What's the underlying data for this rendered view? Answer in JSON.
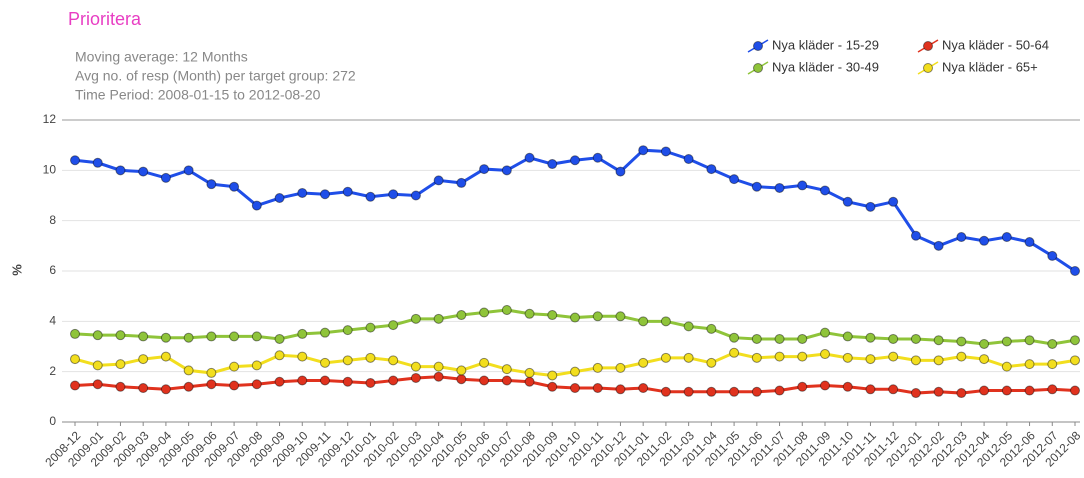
{
  "chart_data": {
    "type": "line",
    "title": "Prioritera",
    "subtitle": [
      "Moving average: 12 Months",
      "Avg no. of resp (Month) per target group: 272",
      "Time Period: 2008-01-15 to 2012-08-20"
    ],
    "y_label": "%",
    "categories": [
      "2008-12",
      "2009-01",
      "2009-02",
      "2009-03",
      "2009-04",
      "2009-05",
      "2009-06",
      "2009-07",
      "2009-08",
      "2009-09",
      "2009-10",
      "2009-11",
      "2009-12",
      "2010-01",
      "2010-02",
      "2010-03",
      "2010-04",
      "2010-05",
      "2010-06",
      "2010-07",
      "2010-08",
      "2010-09",
      "2010-10",
      "2010-11",
      "2010-12",
      "2011-01",
      "2011-02",
      "2011-03",
      "2011-04",
      "2011-05",
      "2011-06",
      "2011-07",
      "2011-08",
      "2011-09",
      "2011-10",
      "2011-11",
      "2011-12",
      "2012-01",
      "2012-02",
      "2012-03",
      "2012-04",
      "2012-05",
      "2012-06",
      "2012-07",
      "2012-08"
    ],
    "series": [
      {
        "name": "Nya kläder - 15-29",
        "color": "#1f4ee8",
        "values": [
          10.4,
          10.3,
          10.0,
          9.95,
          9.7,
          10.0,
          9.45,
          9.35,
          8.6,
          8.9,
          9.1,
          9.05,
          9.15,
          8.95,
          9.05,
          9.0,
          9.6,
          9.5,
          10.05,
          10.0,
          10.5,
          10.25,
          10.4,
          10.5,
          9.95,
          10.8,
          10.75,
          10.45,
          10.05,
          9.65,
          9.35,
          9.3,
          9.4,
          9.2,
          8.75,
          8.55,
          8.75,
          7.4,
          7.0,
          7.35,
          7.2,
          7.35,
          7.15,
          6.6,
          6.0
        ]
      },
      {
        "name": "Nya kläder - 50-64",
        "color": "#e0321e",
        "values": [
          1.45,
          1.5,
          1.4,
          1.35,
          1.3,
          1.4,
          1.5,
          1.45,
          1.5,
          1.6,
          1.65,
          1.65,
          1.6,
          1.55,
          1.65,
          1.75,
          1.8,
          1.7,
          1.65,
          1.65,
          1.6,
          1.4,
          1.35,
          1.35,
          1.3,
          1.35,
          1.2,
          1.2,
          1.2,
          1.2,
          1.2,
          1.25,
          1.4,
          1.45,
          1.4,
          1.3,
          1.3,
          1.15,
          1.2,
          1.15,
          1.25,
          1.25,
          1.25,
          1.3,
          1.25
        ]
      },
      {
        "name": "Nya kläder - 30-49",
        "color": "#8fc43a",
        "values": [
          3.5,
          3.45,
          3.45,
          3.4,
          3.35,
          3.35,
          3.4,
          3.4,
          3.4,
          3.3,
          3.5,
          3.55,
          3.65,
          3.75,
          3.85,
          4.1,
          4.1,
          4.25,
          4.35,
          4.45,
          4.3,
          4.25,
          4.15,
          4.2,
          4.2,
          4.0,
          4.0,
          3.8,
          3.7,
          3.35,
          3.3,
          3.3,
          3.3,
          3.55,
          3.4,
          3.35,
          3.3,
          3.3,
          3.25,
          3.2,
          3.1,
          3.2,
          3.25,
          3.1,
          3.25
        ]
      },
      {
        "name": "Nya kläder - 65+",
        "color": "#f2de1e",
        "values": [
          2.5,
          2.25,
          2.3,
          2.5,
          2.6,
          2.05,
          1.95,
          2.2,
          2.25,
          2.65,
          2.6,
          2.35,
          2.45,
          2.55,
          2.45,
          2.2,
          2.2,
          2.05,
          2.35,
          2.1,
          1.95,
          1.85,
          2.0,
          2.15,
          2.15,
          2.35,
          2.55,
          2.55,
          2.35,
          2.75,
          2.55,
          2.6,
          2.6,
          2.7,
          2.55,
          2.5,
          2.6,
          2.45,
          2.45,
          2.6,
          2.5,
          2.2,
          2.3,
          2.3,
          2.45
        ]
      }
    ],
    "ylim": [
      0,
      12
    ],
    "yticks": [
      0,
      2,
      4,
      6,
      8,
      10,
      12
    ],
    "grid": true,
    "legend": "top-right"
  }
}
